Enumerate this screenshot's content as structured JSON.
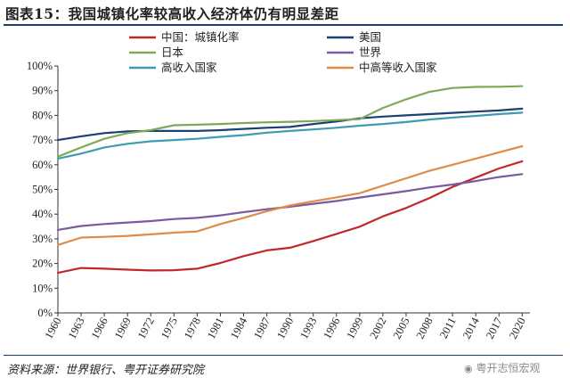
{
  "figure": {
    "title": "图表15：我国城镇化率较高收入经济体仍有明显差距",
    "source": "资料来源：世界银行、粤开证券研究院",
    "watermark": "粤开志恒宏观"
  },
  "chart_data": {
    "type": "line",
    "title": "",
    "xlabel": "",
    "ylabel": "",
    "x": [
      1960,
      1963,
      1966,
      1969,
      1972,
      1975,
      1978,
      1981,
      1984,
      1987,
      1990,
      1993,
      1996,
      1999,
      2002,
      2005,
      2008,
      2011,
      2014,
      2017,
      2020
    ],
    "x_ticks": [
      "1960",
      "1963",
      "1966",
      "1969",
      "1972",
      "1975",
      "1978",
      "1981",
      "1984",
      "1987",
      "1990",
      "1993",
      "1996",
      "1999",
      "2002",
      "2005",
      "2008",
      "2011",
      "2014",
      "2017",
      "2020"
    ],
    "x_range": [
      1960,
      2021
    ],
    "ylim": [
      0,
      100
    ],
    "y_ticks": [
      "0%",
      "10%",
      "20%",
      "30%",
      "40%",
      "50%",
      "60%",
      "70%",
      "80%",
      "90%",
      "100%"
    ],
    "y_tick_values": [
      0,
      10,
      20,
      30,
      40,
      50,
      60,
      70,
      80,
      90,
      100
    ],
    "grid": false,
    "legend_position": "top",
    "series": [
      {
        "name": "中国：城镇化率",
        "color": "#c0282d",
        "values": [
          16.2,
          18.2,
          17.9,
          17.5,
          17.2,
          17.3,
          17.9,
          20.2,
          23.0,
          25.3,
          26.4,
          29.1,
          32.0,
          34.9,
          39.1,
          42.5,
          46.5,
          51.0,
          54.8,
          58.5,
          61.4
        ]
      },
      {
        "name": "美国",
        "color": "#1d3f73",
        "values": [
          70.0,
          71.5,
          72.8,
          73.5,
          73.7,
          73.7,
          73.7,
          74.0,
          74.5,
          75.0,
          75.3,
          76.5,
          77.5,
          78.8,
          79.5,
          80.0,
          80.5,
          81.0,
          81.5,
          82.0,
          82.7
        ]
      },
      {
        "name": "日本",
        "color": "#7ea957",
        "values": [
          63.3,
          67.0,
          70.5,
          72.8,
          74.0,
          76.0,
          76.2,
          76.5,
          76.9,
          77.2,
          77.4,
          77.7,
          78.1,
          78.5,
          83.0,
          86.5,
          89.5,
          91.1,
          91.5,
          91.6,
          91.8
        ]
      },
      {
        "name": "世界",
        "color": "#7a5aa0",
        "values": [
          33.6,
          35.2,
          36.0,
          36.6,
          37.2,
          38.0,
          38.5,
          39.5,
          40.8,
          42.0,
          43.0,
          44.2,
          45.3,
          46.7,
          48.0,
          49.3,
          50.8,
          52.0,
          53.4,
          55.0,
          56.2
        ]
      },
      {
        "name": "高收入国家",
        "color": "#3f9cb0",
        "values": [
          62.5,
          64.5,
          67.0,
          68.5,
          69.5,
          70.0,
          70.5,
          71.3,
          72.0,
          73.0,
          73.7,
          74.3,
          75.0,
          75.8,
          76.5,
          77.3,
          78.3,
          79.1,
          79.8,
          80.5,
          81.1
        ]
      },
      {
        "name": "中高等收入国家",
        "color": "#e08b47",
        "values": [
          27.5,
          30.5,
          30.8,
          31.2,
          31.8,
          32.5,
          33.0,
          36.0,
          38.5,
          41.2,
          43.5,
          45.2,
          46.8,
          48.5,
          51.5,
          54.5,
          57.5,
          60.0,
          62.5,
          65.0,
          67.5
        ]
      }
    ]
  }
}
